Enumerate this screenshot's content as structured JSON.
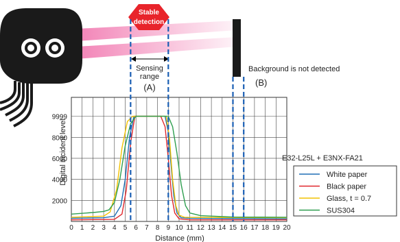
{
  "diagram": {
    "stable_label_line1": "Stable",
    "stable_label_line2": "detection",
    "sensing_label_line1": "Sensing",
    "sensing_label_line2": "range",
    "marker_a": "(A)",
    "marker_b": "(B)",
    "background_note": "Background is not detected",
    "model": "E32-L25L + E3NX-FA21",
    "colors": {
      "stable_arrow": "#e8242b",
      "beam": "#f06eaa",
      "dashed": "#1a5fb4",
      "sensor": "#1a1a1a"
    }
  },
  "chart_data": {
    "type": "line",
    "xlabel": "Distance (mm)",
    "ylabel": "Digital incident level",
    "x_ticks": [
      "0",
      "1",
      "2",
      "3",
      "4",
      "5",
      "6",
      "7",
      "8",
      "9",
      "10",
      "11",
      "12",
      "13",
      "14",
      "15",
      "16",
      "17",
      "18",
      "19",
      "20"
    ],
    "y_ticks": [
      "2000",
      "4000",
      "6000",
      "8000",
      "9999"
    ],
    "xlim": [
      0,
      20
    ],
    "ylim": [
      0,
      11800
    ],
    "grid": true,
    "legend_position": "right",
    "sensing_range": [
      5.5,
      9
    ],
    "background_position": [
      15,
      16
    ],
    "series": [
      {
        "name": "White paper",
        "color": "#1f6fb5",
        "points": [
          [
            0,
            300
          ],
          [
            3,
            350
          ],
          [
            4,
            500
          ],
          [
            4.6,
            1500
          ],
          [
            5,
            4000
          ],
          [
            5.4,
            8000
          ],
          [
            5.8,
            9999
          ],
          [
            8.7,
            9999
          ],
          [
            9,
            8500
          ],
          [
            9.2,
            6000
          ],
          [
            9.5,
            2500
          ],
          [
            9.8,
            800
          ],
          [
            10.2,
            350
          ],
          [
            11,
            300
          ],
          [
            20,
            250
          ]
        ]
      },
      {
        "name": "Black paper",
        "color": "#e0262b",
        "points": [
          [
            0,
            150
          ],
          [
            4,
            200
          ],
          [
            4.7,
            700
          ],
          [
            5.1,
            3000
          ],
          [
            5.5,
            7500
          ],
          [
            5.9,
            9999
          ],
          [
            8.3,
            9999
          ],
          [
            8.7,
            9000
          ],
          [
            9,
            6000
          ],
          [
            9.3,
            2500
          ],
          [
            9.6,
            800
          ],
          [
            10,
            250
          ],
          [
            11,
            150
          ],
          [
            20,
            150
          ]
        ]
      },
      {
        "name": "Glass, t = 0.7",
        "color": "#f2c200",
        "points": [
          [
            0,
            400
          ],
          [
            3,
            500
          ],
          [
            3.6,
            900
          ],
          [
            4.2,
            3000
          ],
          [
            4.7,
            7000
          ],
          [
            5.2,
            9500
          ],
          [
            5.7,
            9999
          ],
          [
            8.8,
            9999
          ],
          [
            9.1,
            8000
          ],
          [
            9.4,
            4000
          ],
          [
            9.7,
            1500
          ],
          [
            10,
            600
          ],
          [
            10.5,
            400
          ],
          [
            20,
            350
          ]
        ]
      },
      {
        "name": "SUS304",
        "color": "#2e9e4f",
        "points": [
          [
            0,
            700
          ],
          [
            2,
            850
          ],
          [
            3,
            950
          ],
          [
            3.5,
            1100
          ],
          [
            4,
            1800
          ],
          [
            4.5,
            4000
          ],
          [
            5,
            7200
          ],
          [
            5.5,
            9300
          ],
          [
            6,
            9999
          ],
          [
            9,
            9999
          ],
          [
            9.4,
            9000
          ],
          [
            9.8,
            6500
          ],
          [
            10.2,
            3500
          ],
          [
            10.6,
            1500
          ],
          [
            11,
            800
          ],
          [
            12,
            550
          ],
          [
            15,
            420
          ],
          [
            20,
            400
          ]
        ]
      }
    ]
  }
}
